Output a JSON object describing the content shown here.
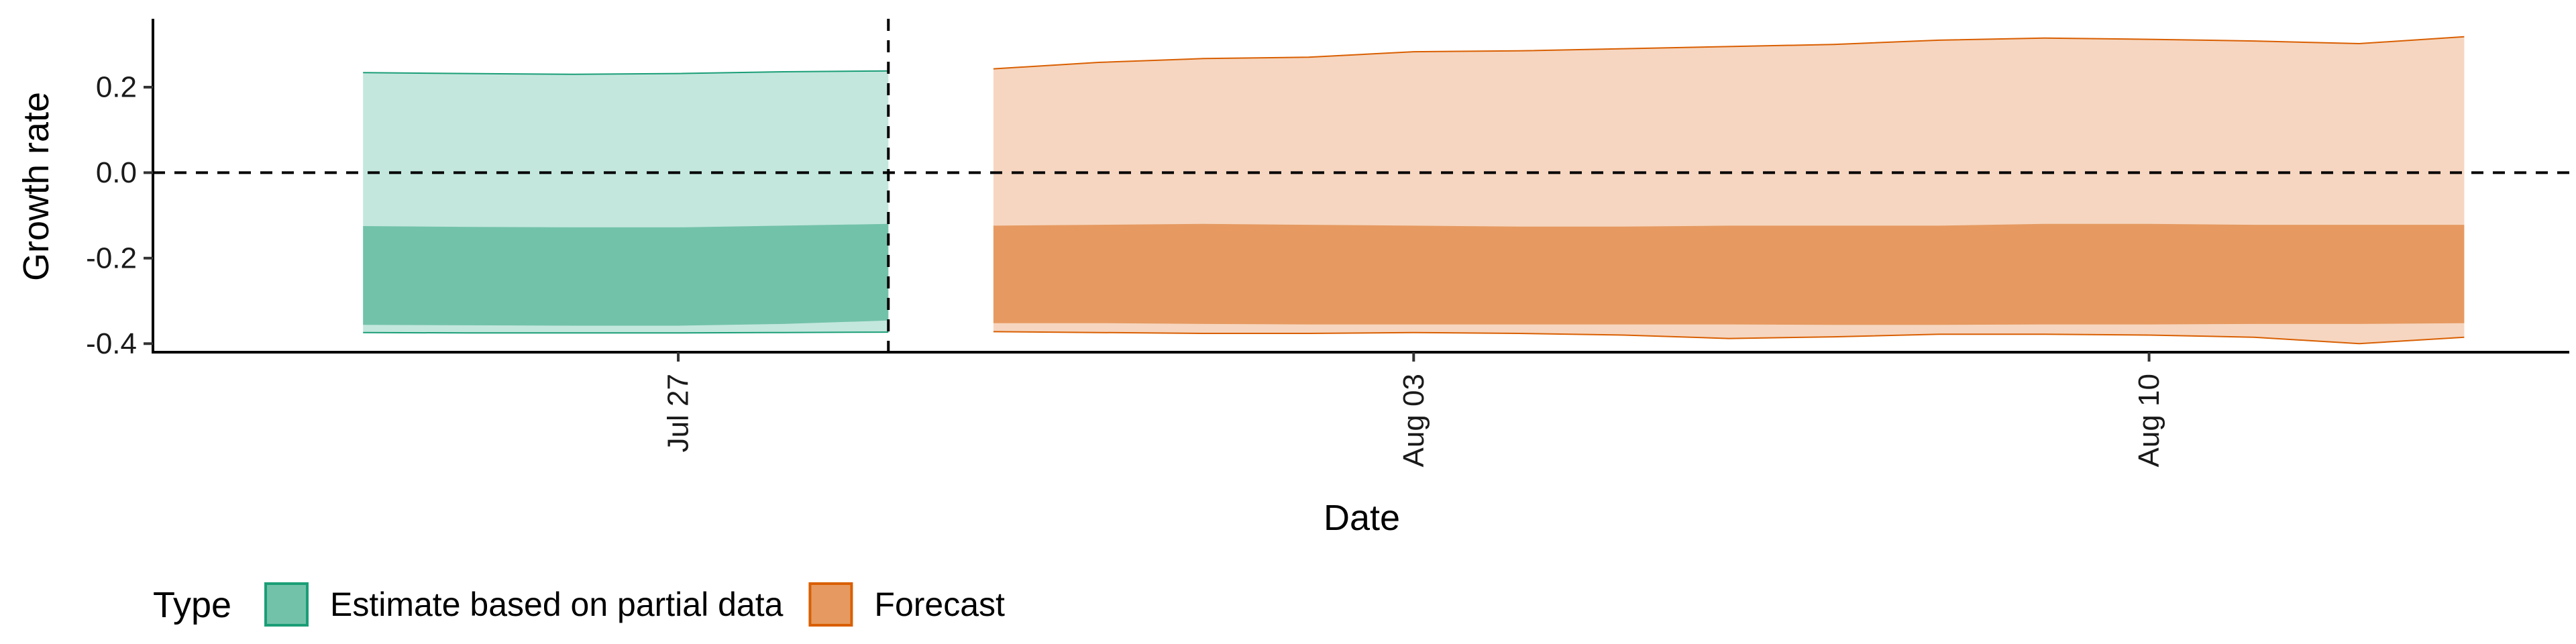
{
  "chart_data": {
    "type": "area",
    "xlabel": "Date",
    "ylabel": "Growth rate",
    "x_axis_type": "date",
    "xlim": [
      "2023-07-22",
      "2023-08-14"
    ],
    "ylim": [
      -0.42,
      0.36
    ],
    "x_ticks": [
      {
        "date": "2023-07-27",
        "label": "Jul 27"
      },
      {
        "date": "2023-08-03",
        "label": "Aug 03"
      },
      {
        "date": "2023-08-10",
        "label": "Aug 10"
      }
    ],
    "y_ticks": [
      {
        "value": 0.2,
        "label": "0.2"
      },
      {
        "value": 0.0,
        "label": "0.0"
      },
      {
        "value": -0.2,
        "label": "-0.2"
      },
      {
        "value": -0.4,
        "label": "-0.4"
      }
    ],
    "reference_lines": {
      "horizontal_y": 0.0,
      "vertical_x": "2023-07-29"
    },
    "grid": false,
    "legend": {
      "title": "Type",
      "placement": "bottom-left"
    },
    "series": [
      {
        "name": "Estimate based on partial data",
        "fill_light": "#c3e7dd",
        "fill_dark": "#72c2a9",
        "stroke": "#1b9e77",
        "x": [
          "2023-07-24",
          "2023-07-25",
          "2023-07-26",
          "2023-07-27",
          "2023-07-28",
          "2023-07-29"
        ],
        "outer_upper": [
          0.234,
          0.232,
          0.23,
          0.232,
          0.236,
          0.238
        ],
        "outer_lower": [
          -0.374,
          -0.375,
          -0.375,
          -0.375,
          -0.374,
          -0.373
        ],
        "inner_upper": [
          -0.125,
          -0.127,
          -0.128,
          -0.128,
          -0.124,
          -0.12
        ],
        "inner_lower": [
          -0.356,
          -0.357,
          -0.358,
          -0.358,
          -0.354,
          -0.346
        ]
      },
      {
        "name": "Forecast",
        "fill_light": "#f6d6c0",
        "fill_dark": "#e69a61",
        "stroke": "#d95f02",
        "x": [
          "2023-07-30",
          "2023-07-31",
          "2023-08-01",
          "2023-08-02",
          "2023-08-03",
          "2023-08-04",
          "2023-08-05",
          "2023-08-06",
          "2023-08-07",
          "2023-08-08",
          "2023-08-09",
          "2023-08-10",
          "2023-08-11",
          "2023-08-12",
          "2023-08-13"
        ],
        "outer_upper": [
          0.243,
          0.258,
          0.267,
          0.27,
          0.283,
          0.285,
          0.29,
          0.295,
          0.3,
          0.31,
          0.315,
          0.312,
          0.308,
          0.302,
          0.318
        ],
        "outer_lower": [
          -0.372,
          -0.374,
          -0.376,
          -0.376,
          -0.374,
          -0.376,
          -0.38,
          -0.388,
          -0.384,
          -0.378,
          -0.378,
          -0.38,
          -0.385,
          -0.4,
          -0.385
        ],
        "inner_upper": [
          -0.124,
          -0.122,
          -0.12,
          -0.122,
          -0.124,
          -0.126,
          -0.126,
          -0.124,
          -0.124,
          -0.124,
          -0.12,
          -0.12,
          -0.122,
          -0.122,
          -0.122
        ],
        "inner_lower": [
          -0.352,
          -0.352,
          -0.354,
          -0.355,
          -0.355,
          -0.355,
          -0.355,
          -0.355,
          -0.356,
          -0.356,
          -0.355,
          -0.355,
          -0.354,
          -0.354,
          -0.352
        ]
      }
    ]
  }
}
